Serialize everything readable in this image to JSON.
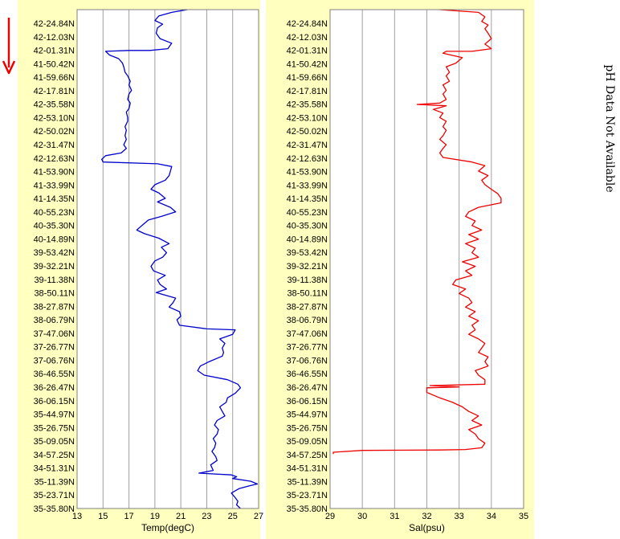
{
  "colors": {
    "panel_bg": "#ffffc0",
    "plot_bg": "#ffffff",
    "grid": "#a0a0a0",
    "temp_line": "#0000cc",
    "sal_line": "#ee0000",
    "arrow": "#ee0000"
  },
  "side_note": "pH Data Not Available",
  "chart_data": [
    {
      "type": "line",
      "xlabel": "Temp(degC)",
      "xlim": [
        13,
        27
      ],
      "xticks": [
        13,
        15,
        17,
        19,
        21,
        23,
        25,
        27
      ],
      "grid": true,
      "y_tick_labels": [
        "42-24.84N",
        "42-12.03N",
        "42-01.31N",
        "41-50.42N",
        "41-59.66N",
        "42-17.81N",
        "42-35.58N",
        "42-53.10N",
        "42-50.02N",
        "42-31.47N",
        "42-12.63N",
        "41-53.90N",
        "41-33.99N",
        "41-14.35N",
        "40-55.23N",
        "40-35.30N",
        "40-14.89N",
        "39-53.42N",
        "39-32.21N",
        "39-11.38N",
        "38-50.11N",
        "38-27.87N",
        "38-06.79N",
        "37-47.06N",
        "37-26.77N",
        "37-06.76N",
        "36-46.55N",
        "36-26.47N",
        "36-06.15N",
        "35-44.97N",
        "35-26.75N",
        "35-09.05N",
        "34-57.25N",
        "34-51.31N",
        "35-11.39N",
        "35-23.71N",
        "35-35.80N"
      ],
      "series": [
        {
          "color": "#0000cc",
          "x": [
            21.5,
            20.3,
            19.3,
            19.0,
            19.6,
            19.2,
            19.1,
            19.4,
            20.3,
            20.0,
            18.6,
            17.0,
            15.2,
            15.5,
            16.2,
            16.5,
            16.6,
            16.7,
            16.9,
            17.1,
            17.0,
            17.2,
            17.0,
            16.9,
            17.1,
            17.0,
            16.8,
            16.9,
            16.9,
            16.7,
            16.8,
            16.7,
            16.8,
            16.6,
            16.8,
            16.4,
            15.2,
            14.9,
            15.0,
            19.2,
            20.3,
            20.2,
            20.1,
            19.8,
            19.0,
            18.7,
            19.3,
            19.8,
            19.2,
            20.2,
            20.6,
            19.5,
            18.5,
            18.0,
            17.6,
            18.2,
            19.3,
            20.1,
            19.5,
            19.9,
            19.6,
            19.0,
            18.7,
            18.9,
            19.8,
            19.2,
            19.4,
            19.9,
            19.1,
            20.6,
            20.4,
            20.1,
            20.9,
            21.0,
            20.7,
            20.9,
            23.0,
            25.2,
            25.0,
            24.0,
            24.4,
            24.2,
            24.3,
            24.2,
            23.2,
            22.5,
            22.3,
            22.8,
            24.6,
            25.4,
            25.6,
            25.2,
            24.6,
            24.5,
            24.0,
            24.2,
            24.4,
            23.8,
            23.6,
            23.9,
            23.8,
            23.5,
            23.7,
            23.6,
            23.4,
            23.7,
            23.8,
            23.3,
            23.5,
            22.4,
            24.9,
            25.3,
            25.0,
            26.4,
            26.9,
            26.3,
            25.5,
            24.9,
            25.2,
            25.4,
            25.3,
            25.6
          ],
          "y": [
            0,
            0.6,
            1.4,
            2.4,
            3.2,
            4.0,
            5.2,
            6.4,
            7.4,
            8.6,
            9.0,
            9.0,
            9.2,
            10.0,
            10.8,
            11.8,
            12.6,
            13.8,
            14.6,
            15.8,
            16.6,
            17.8,
            18.6,
            19.8,
            20.6,
            21.8,
            22.6,
            23.8,
            24.6,
            25.8,
            26.6,
            27.8,
            28.6,
            29.8,
            30.6,
            31.6,
            32.2,
            33.0,
            33.6,
            34.0,
            34.6,
            35.6,
            36.6,
            37.6,
            38.6,
            39.6,
            40.4,
            41.6,
            42.4,
            43.6,
            44.6,
            45.6,
            46.4,
            47.6,
            48.6,
            49.4,
            50.4,
            51.6,
            52.4,
            53.6,
            54.6,
            55.4,
            56.6,
            57.6,
            58.6,
            59.6,
            60.6,
            61.6,
            62.4,
            63.6,
            64.6,
            65.6,
            66.6,
            67.6,
            68.4,
            69.6,
            70.4,
            70.6,
            71.6,
            72.6,
            73.6,
            74.6,
            75.6,
            76.4,
            77.6,
            78.6,
            79.6,
            80.6,
            81.6,
            82.6,
            83.4,
            84.6,
            85.6,
            86.6,
            87.6,
            88.6,
            89.6,
            90.6,
            91.6,
            92.6,
            93.6,
            94.6,
            95.6,
            96.6,
            97.4,
            98.6,
            99.4,
            100.4,
            101.6,
            102.2,
            102.6,
            103.0,
            103.4,
            104.0,
            104.6,
            105.0,
            105.6,
            106.6,
            107.6,
            108.4,
            109.2,
            110.0
          ]
        }
      ]
    },
    {
      "type": "line",
      "xlabel": "Sal(psu)",
      "xlim": [
        29,
        35
      ],
      "xticks": [
        29,
        30,
        31,
        32,
        33,
        34,
        35
      ],
      "grid": true,
      "y_tick_labels": [
        "42-24.84N",
        "42-12.03N",
        "42-01.31N",
        "41-50.42N",
        "41-59.66N",
        "42-17.81N",
        "42-35.58N",
        "42-53.10N",
        "42-50.02N",
        "42-31.47N",
        "42-12.63N",
        "41-53.90N",
        "41-33.99N",
        "41-14.35N",
        "40-55.23N",
        "40-35.30N",
        "40-14.89N",
        "39-53.42N",
        "39-32.21N",
        "39-11.38N",
        "38-50.11N",
        "38-27.87N",
        "38-06.79N",
        "37-47.06N",
        "37-26.77N",
        "37-06.76N",
        "36-46.55N",
        "36-26.47N",
        "36-06.15N",
        "35-44.97N",
        "35-26.75N",
        "35-09.05N",
        "34-57.25N",
        "34-51.31N",
        "35-11.39N",
        "35-23.71N",
        "35-35.80N"
      ],
      "series": [
        {
          "color": "#ee0000",
          "x": [
            32.4,
            33.6,
            33.8,
            33.7,
            33.9,
            33.8,
            33.9,
            34.0,
            33.8,
            34.0,
            33.4,
            32.6,
            32.5,
            33.1,
            32.9,
            32.6,
            32.7,
            32.6,
            32.7,
            32.5,
            32.6,
            32.5,
            32.6,
            32.4,
            31.7,
            32.6,
            32.2,
            32.5,
            32.4,
            32.6,
            32.5,
            32.6,
            32.5,
            32.4,
            32.6,
            32.5,
            32.4,
            32.5,
            33.4,
            33.8,
            33.6,
            33.9,
            33.7,
            33.8,
            34.0,
            34.2,
            34.3,
            34.3,
            33.6,
            33.3,
            33.2,
            33.5,
            33.4,
            33.7,
            33.3,
            33.6,
            33.2,
            33.5,
            33.4,
            33.6,
            33.1,
            33.5,
            33.2,
            33.4,
            32.9,
            32.8,
            33.2,
            33.0,
            33.3,
            33.4,
            33.2,
            33.5,
            33.3,
            33.6,
            33.4,
            33.5,
            33.3,
            33.6,
            33.8,
            33.7,
            33.6,
            33.9,
            33.8,
            33.9,
            33.5,
            33.6,
            33.8,
            33.8,
            32.1,
            33.0,
            32.0,
            32.0,
            32.4,
            32.8,
            33.1,
            33.3,
            33.6,
            33.4,
            33.7,
            33.3,
            33.5,
            33.6,
            33.8,
            33.7,
            33.2,
            32.4,
            30.0,
            29.1,
            29.1
          ],
          "y": [
            0,
            0.6,
            1.6,
            2.6,
            3.4,
            4.2,
            5.2,
            6.4,
            7.6,
            8.6,
            9.2,
            9.2,
            9.6,
            10.6,
            11.8,
            12.6,
            13.8,
            14.6,
            15.8,
            16.6,
            17.8,
            18.6,
            19.8,
            20.6,
            20.9,
            21.2,
            22.0,
            22.8,
            23.8,
            24.6,
            25.8,
            26.6,
            27.8,
            28.6,
            29.8,
            30.6,
            31.6,
            32.6,
            33.6,
            34.4,
            35.6,
            36.6,
            37.6,
            38.6,
            39.6,
            40.6,
            41.6,
            42.6,
            43.6,
            44.6,
            45.6,
            46.6,
            47.6,
            48.6,
            49.6,
            50.6,
            51.6,
            52.6,
            53.6,
            54.6,
            55.6,
            56.6,
            57.6,
            58.6,
            59.6,
            60.6,
            61.6,
            62.6,
            63.6,
            64.6,
            65.6,
            66.6,
            67.6,
            68.6,
            69.6,
            70.6,
            71.6,
            72.6,
            73.6,
            74.6,
            75.6,
            76.6,
            77.6,
            78.6,
            79.6,
            80.6,
            81.6,
            82.6,
            82.9,
            83.2,
            83.4,
            84.4,
            85.6,
            86.6,
            87.6,
            88.6,
            89.6,
            90.6,
            91.6,
            92.6,
            93.6,
            94.6,
            95.6,
            96.6,
            97.0,
            97.1,
            97.2,
            97.6,
            98.0
          ]
        }
      ]
    }
  ]
}
